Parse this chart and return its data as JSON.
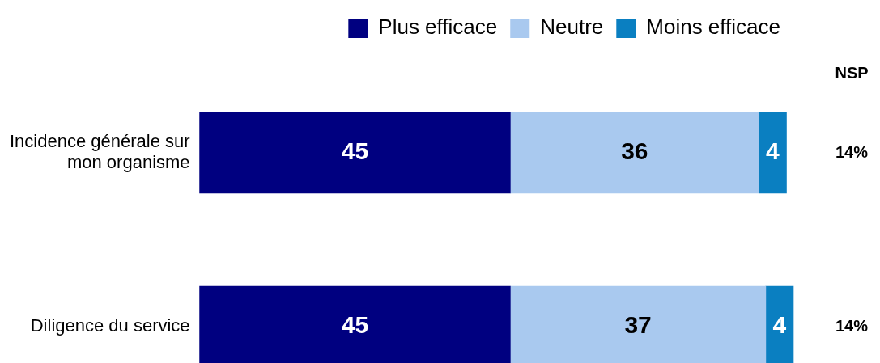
{
  "chart_data": {
    "type": "bar",
    "orientation": "horizontal",
    "stacked": true,
    "data_labels": true,
    "legend": "top",
    "grid": false,
    "tick_labels": "y",
    "categories": [
      "Incidence générale sur mon organisme",
      "Diligence du service"
    ],
    "series": [
      {
        "name": "Plus efficace",
        "color": "#000080",
        "values": [
          45,
          45
        ]
      },
      {
        "name": "Neutre",
        "color": "#a9c9ef",
        "values": [
          36,
          37
        ]
      },
      {
        "name": "Moins efficace",
        "color": "#0a7fc1",
        "values": [
          4,
          4
        ]
      }
    ],
    "annotations": [
      "NSP",
      "14%",
      "14%"
    ]
  }
}
